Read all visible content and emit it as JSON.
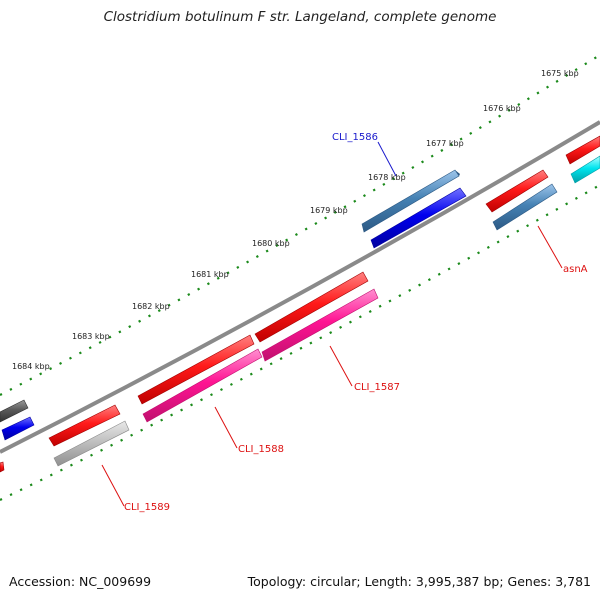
{
  "title": "Clostridium botulinum F str. Langeland, complete genome",
  "footer": {
    "accession": "Accession: NC_009699",
    "topology": "Topology: circular; Length: 3,995,387 bp; Genes: 3,781"
  },
  "ticks": [
    {
      "label": "1675 kbp"
    },
    {
      "label": "1676 kbp"
    },
    {
      "label": "1677 kbp"
    },
    {
      "label": "1678 kbp"
    },
    {
      "label": "1679 kbp"
    },
    {
      "label": "1680 kbp"
    },
    {
      "label": "1681 kbp"
    },
    {
      "label": "1682 kbp"
    },
    {
      "label": "1683 kbp"
    },
    {
      "label": "1684 kbp"
    }
  ],
  "gene_labels": [
    {
      "name": "CLI_1586",
      "color": "#1a1acc"
    },
    {
      "name": "asnA",
      "color": "#dd1111"
    },
    {
      "name": "CLI_1587",
      "color": "#dd1111"
    },
    {
      "name": "CLI_1588",
      "color": "#dd1111"
    },
    {
      "name": "CLI_1589",
      "color": "#dd1111"
    }
  ],
  "colors": {
    "backbone": "#8a8a8a",
    "tick": "#1b8a1b",
    "label": "#222222"
  }
}
